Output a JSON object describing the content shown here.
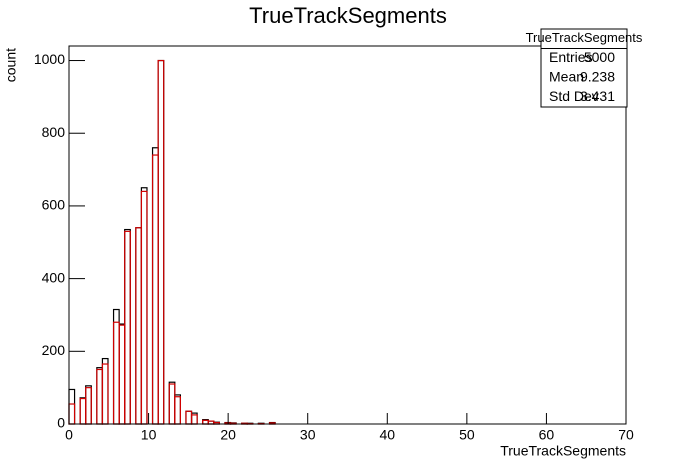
{
  "chart_data": {
    "type": "histogram",
    "title": "TrueTrackSegments",
    "xlabel": "TrueTrackSegments",
    "ylabel": "count",
    "bins": [
      0,
      0.7,
      1.4,
      2.1,
      2.8,
      3.5,
      4.2,
      4.9,
      5.6,
      6.3,
      7,
      7.7,
      8.4,
      9.1,
      9.8,
      10.5,
      11.2,
      11.9,
      12.6,
      13.3,
      14,
      14.7,
      15.4,
      16.1,
      16.8,
      17.5,
      18.2,
      18.9,
      19.6,
      20.3,
      21,
      21.7,
      22.4,
      23.1,
      23.8,
      24.5,
      25.2,
      25.9,
      26.6,
      27.3,
      28,
      28.7,
      29.4,
      30.1,
      30.8,
      31.5,
      32.2,
      32.9,
      33.6,
      34.3,
      35,
      35.7,
      36.4,
      37.1,
      37.8,
      38.5,
      39.2,
      39.9,
      40.6,
      41.3,
      42,
      42.7,
      43.4,
      44.1,
      44.8,
      45.5,
      46.2,
      46.9,
      47.6,
      48.3,
      49,
      49.7,
      50.4,
      51.1,
      51.8,
      52.5,
      53.2,
      53.9,
      54.6,
      55.3,
      56,
      56.7,
      57.4,
      58.1,
      58.8,
      59.5,
      60.2,
      60.9,
      61.6,
      62.3,
      63,
      63.7,
      64.4,
      65.1,
      65.8,
      66.5,
      67.2,
      67.9,
      68.6,
      69.3,
      70
    ],
    "series": [
      {
        "color": "#000000",
        "values": [
          95,
          0,
          72,
          105,
          0,
          155,
          180,
          0,
          315,
          275,
          535,
          0,
          540,
          650,
          0,
          760,
          1000,
          0,
          115,
          80,
          0,
          35,
          30,
          0,
          12,
          8,
          5,
          0,
          4,
          3,
          0,
          2,
          2,
          0,
          2,
          0,
          4,
          0,
          0,
          0,
          0,
          0,
          0,
          0,
          0,
          0,
          0,
          0,
          0,
          0,
          0,
          0,
          0,
          0,
          0,
          0,
          0,
          0,
          0,
          0,
          0,
          0,
          0,
          0,
          0,
          0,
          0,
          0,
          0,
          0,
          0,
          0,
          0,
          0,
          0,
          0,
          0,
          0,
          0,
          0,
          0,
          0,
          0,
          0,
          0,
          0,
          0,
          0,
          0,
          0,
          0,
          0,
          0,
          0,
          0,
          0,
          0,
          0,
          0,
          0
        ]
      },
      {
        "color": "#d00000",
        "values": [
          55,
          0,
          70,
          100,
          0,
          150,
          165,
          0,
          280,
          272,
          530,
          0,
          540,
          640,
          0,
          740,
          1000,
          0,
          110,
          75,
          0,
          35,
          25,
          0,
          10,
          8,
          4,
          0,
          3,
          2,
          0,
          2,
          1,
          0,
          1,
          0,
          3,
          0,
          0,
          0,
          0,
          0,
          0,
          0,
          0,
          0,
          0,
          0,
          0,
          0,
          0,
          0,
          0,
          0,
          0,
          0,
          0,
          0,
          0,
          0,
          0,
          0,
          0,
          0,
          0,
          0,
          0,
          0,
          0,
          0,
          0,
          0,
          0,
          0,
          0,
          0,
          0,
          0,
          0,
          0,
          0,
          0,
          0,
          0,
          0,
          0,
          0,
          0,
          0,
          0,
          0,
          0,
          0,
          0,
          0,
          0,
          0,
          0,
          0,
          0
        ]
      }
    ],
    "xlim": [
      0,
      70
    ],
    "xticks": [
      0,
      10,
      20,
      30,
      40,
      50,
      60,
      70
    ],
    "ylim": [
      0,
      1040
    ],
    "yticks": [
      0,
      200,
      400,
      600,
      800,
      1000
    ],
    "stats": {
      "title": "TrueTrackSegments",
      "rows": [
        {
          "label": "Entries",
          "value": 5000
        },
        {
          "label": "Mean",
          "value": 9.238
        },
        {
          "label": "Std Dev",
          "value": 3.431
        }
      ]
    }
  }
}
